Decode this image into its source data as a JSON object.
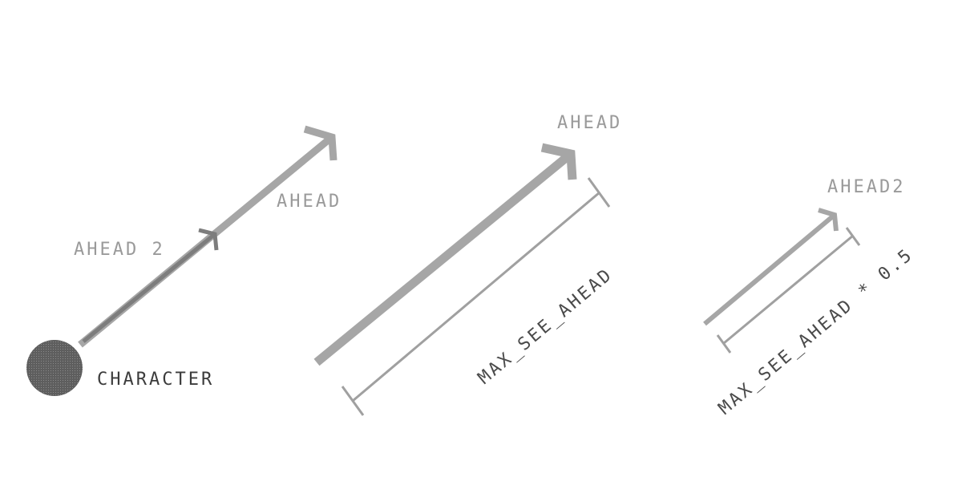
{
  "labels": {
    "character": "CHARACTER",
    "ahead_2_left": "AHEAD 2",
    "ahead_left": "AHEAD",
    "ahead_middle": "AHEAD",
    "max_see_ahead": "MAX_SEE_AHEAD",
    "ahead2_right": "AHEAD2",
    "max_see_ahead_half": "MAX_SEE_AHEAD * 0.5"
  },
  "colors": {
    "character": "#666666",
    "arrow_light": "#a6a6a6",
    "arrow_dark": "#7f7f7f",
    "dimension_line": "#a0a0a0",
    "text_light": "#9a9a9a",
    "text_dark": "#3c3c3c"
  }
}
